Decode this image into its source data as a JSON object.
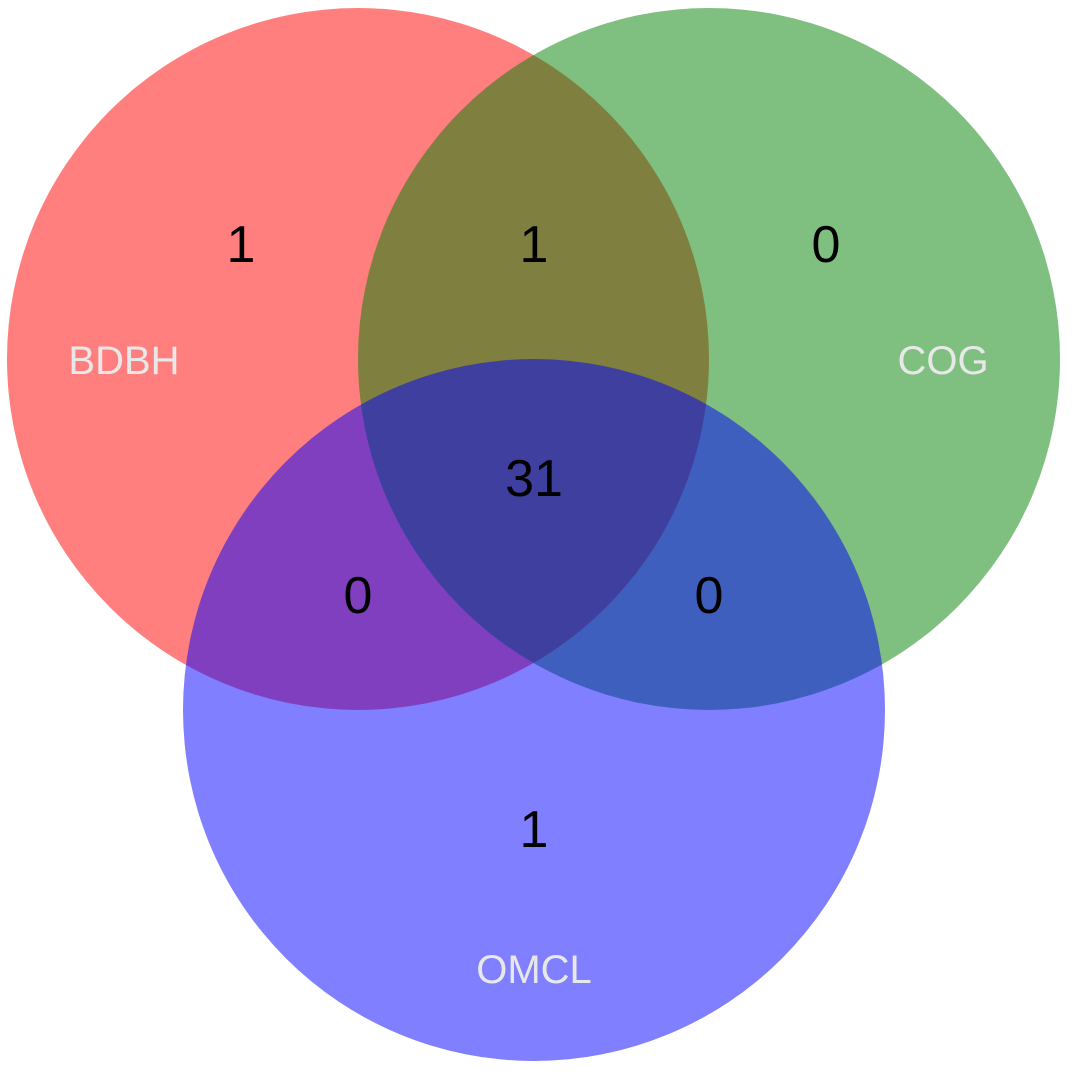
{
  "sets": [
    {
      "name": "BDBH",
      "color": "#ff0000"
    },
    {
      "name": "COG",
      "color": "#008000"
    },
    {
      "name": "OMCL",
      "color": "#0000ff"
    }
  ],
  "fill_opacity": 0.5,
  "regions": {
    "only_bdbh": "1",
    "bdbh_cog": "1",
    "only_cog": "0",
    "all_three": "31",
    "bdbh_omcl": "0",
    "cog_omcl": "0",
    "only_omcl": "1"
  }
}
